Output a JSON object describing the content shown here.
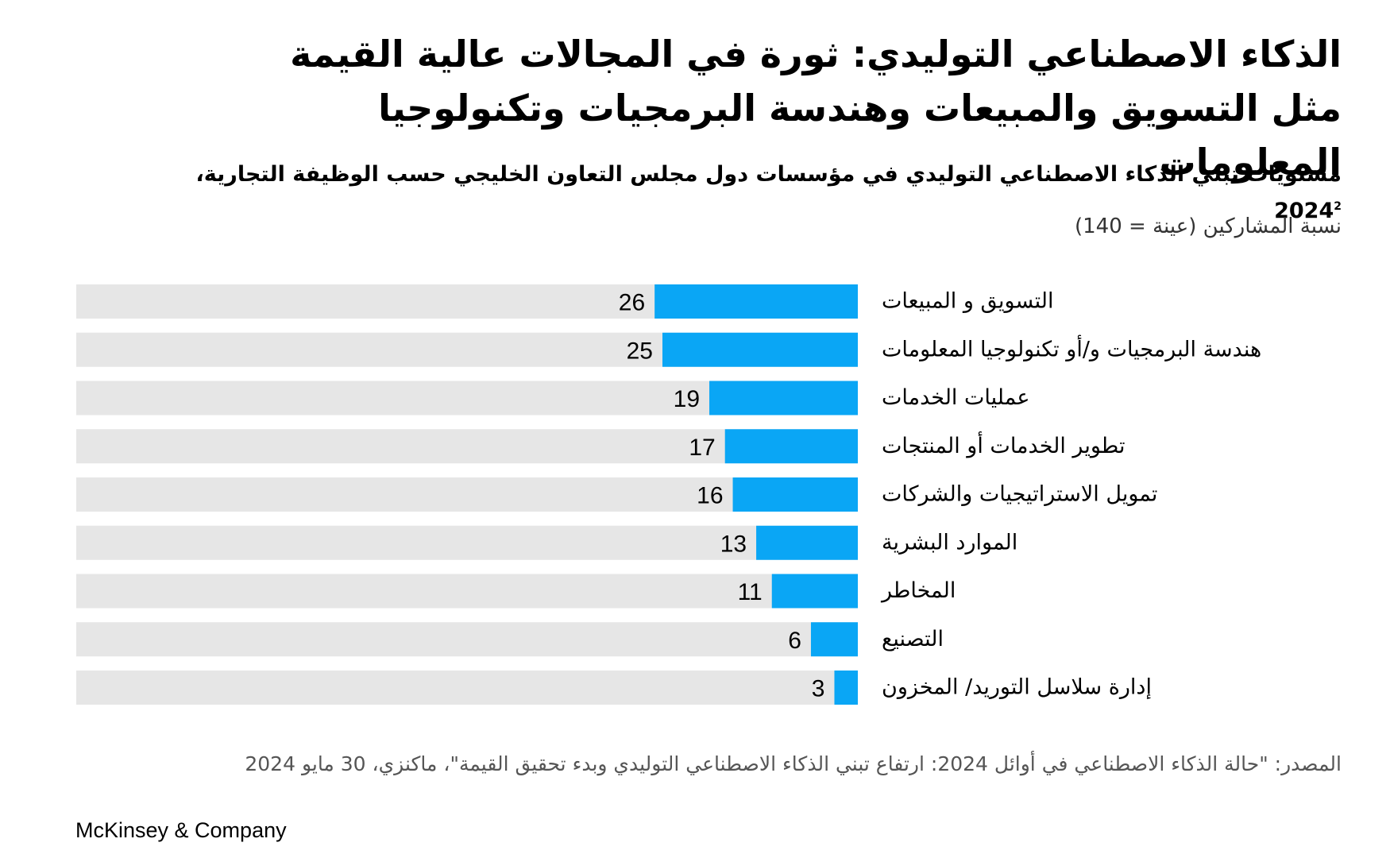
{
  "title": "الذكاء الاصطناعي التوليدي: ثورة في المجالات عالية القيمة مثل التسويق والمبيعات وهندسة البرمجيات وتكنولوجيا المعلومات",
  "subtitle": "مستويات تبني الذكاء الاصطناعي التوليدي في مؤسسات دول مجلس التعاون الخليجي حسب الوظيفة التجارية،",
  "subtitle_footnote": "2",
  "subtitle_year": "2024",
  "unit_label": "نسبة المشاركين (عينة = 140)",
  "chart_data": {
    "type": "bar",
    "orientation": "horizontal",
    "categories": [
      "التسويق و المبيعات",
      "هندسة البرمجيات و/أو تكنولوجيا المعلومات",
      "عمليات الخدمات",
      "تطوير الخدمات أو المنتجات",
      "تمويل الاستراتيجيات والشركات",
      "الموارد البشرية",
      "المخاطر",
      "التصنيع",
      "إدارة سلاسل التوريد/ المخزون"
    ],
    "values": [
      26,
      25,
      19,
      17,
      16,
      13,
      11,
      6,
      3
    ],
    "xlim": [
      0,
      100
    ],
    "bar_color": "#0aa6f5",
    "track_color": "#e6e6e6"
  },
  "source": "المصدر: \"حالة الذكاء الاصطناعي في أوائل 2024: ارتفاع تبني الذكاء الاصطناعي التوليدي وبدء تحقيق القيمة\"، ماكنزي، 30 مايو 2024",
  "brand": "McKinsey & Company"
}
